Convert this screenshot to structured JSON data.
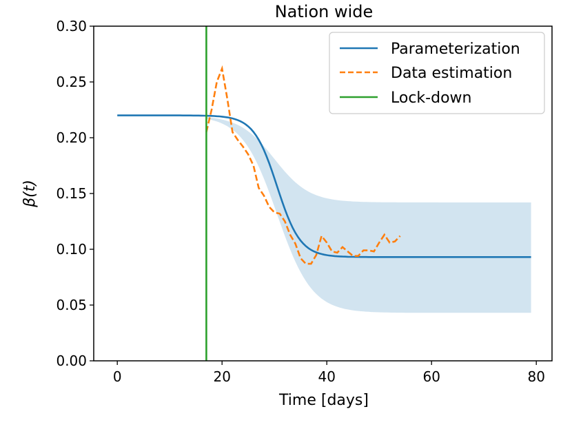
{
  "chart_data": {
    "type": "line",
    "title": "Nation wide",
    "xlabel": "Time [days]",
    "ylabel": "β(t)",
    "xlim": [
      -4.5,
      83
    ],
    "ylim": [
      0,
      0.3
    ],
    "x_ticks": [
      0,
      20,
      40,
      60,
      80
    ],
    "x_tick_labels": [
      "0",
      "20",
      "40",
      "60",
      "80"
    ],
    "y_ticks": [
      0.0,
      0.05,
      0.1,
      0.15,
      0.2,
      0.25,
      0.3
    ],
    "y_tick_labels": [
      "0.00",
      "0.05",
      "0.10",
      "0.15",
      "0.20",
      "0.25",
      "0.30"
    ],
    "legend_position": "top-right",
    "series": [
      {
        "name": "Parameterization",
        "style": "solid",
        "color": "#1f77b4",
        "function": "sigmoid",
        "x_range": [
          0,
          79
        ],
        "start_value": 0.22,
        "end_value": 0.093,
        "midpoint_day": 30.5,
        "steepness": 0.45
      },
      {
        "name": "Data estimation",
        "style": "dashed",
        "color": "#ff7f0e",
        "x": [
          17,
          18,
          19,
          20,
          21,
          22,
          23,
          24,
          25,
          26,
          27,
          28,
          29,
          30,
          31,
          32,
          33,
          34,
          35,
          36,
          37,
          38,
          39,
          40,
          41,
          42,
          43,
          44,
          45,
          46,
          47,
          48,
          49,
          50,
          51,
          52,
          53,
          54
        ],
        "y": [
          0.205,
          0.225,
          0.25,
          0.262,
          0.235,
          0.205,
          0.198,
          0.192,
          0.185,
          0.175,
          0.155,
          0.148,
          0.138,
          0.133,
          0.132,
          0.125,
          0.113,
          0.105,
          0.092,
          0.087,
          0.087,
          0.095,
          0.112,
          0.106,
          0.098,
          0.097,
          0.102,
          0.098,
          0.094,
          0.094,
          0.099,
          0.099,
          0.098,
          0.106,
          0.113,
          0.106,
          0.107,
          0.112
        ]
      },
      {
        "name": "Lock-down",
        "style": "vertical-line",
        "color": "#2ca02c",
        "x": 17
      }
    ],
    "band": {
      "color": "#1f77b4",
      "opacity": 0.2,
      "x_range": [
        17,
        79
      ],
      "upper_end": 0.142,
      "lower_end": 0.043,
      "upper_midpoint_day": 30,
      "lower_midpoint_day": 30.5,
      "upper_steepness": 0.3,
      "lower_steepness": 0.3
    }
  }
}
